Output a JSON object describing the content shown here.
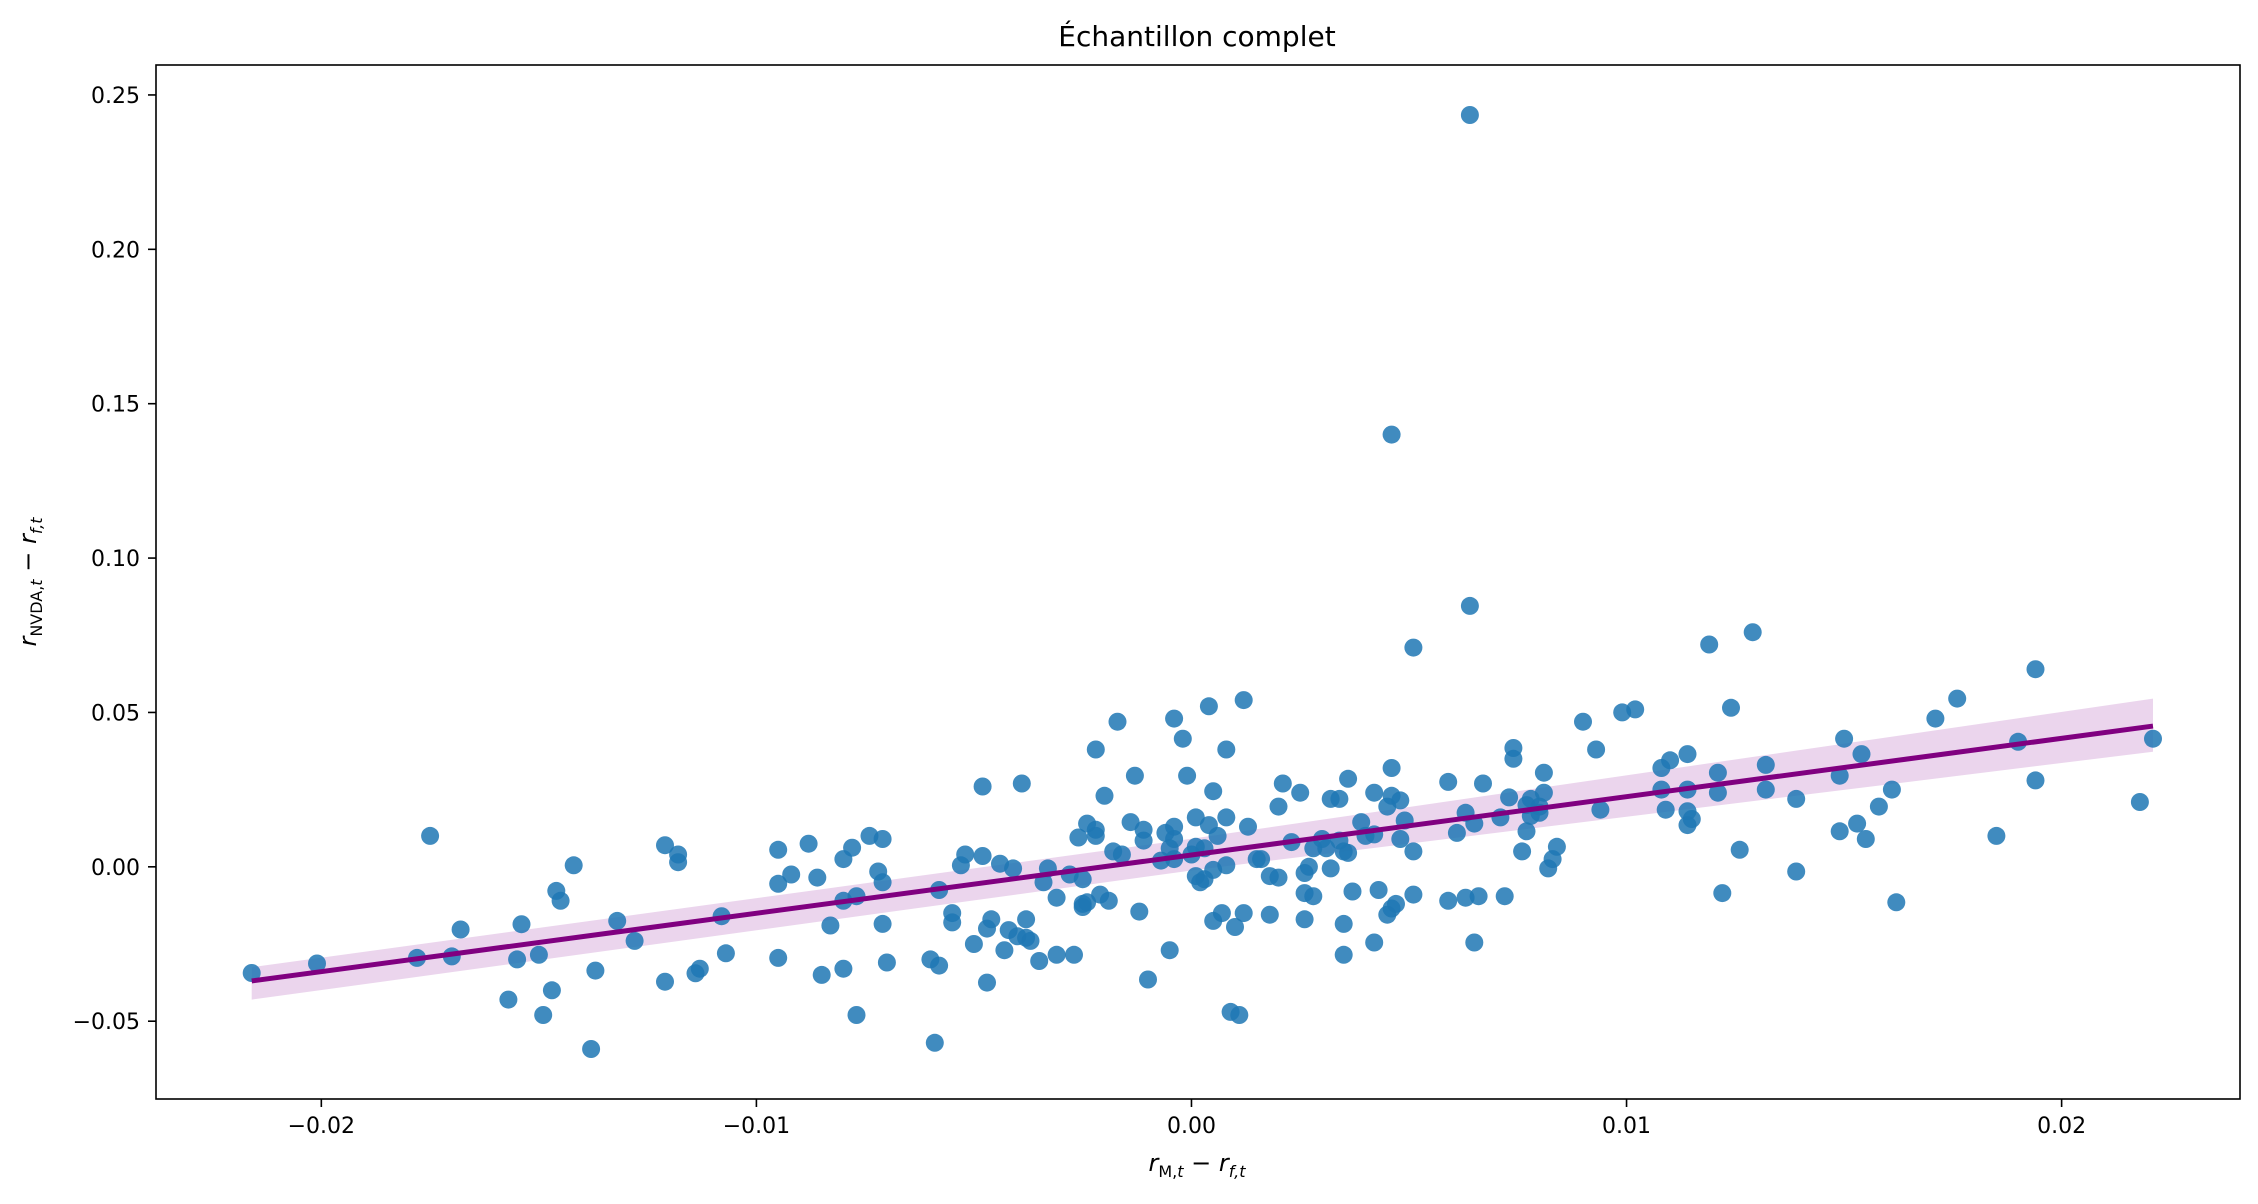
{
  "chart_data": {
    "type": "scatter",
    "title": "Échantillon complet",
    "xlabel": {
      "var": "r",
      "sub1": "M,",
      "sub1b": "t",
      "minus": " − ",
      "var2": "r",
      "sub2": "f,t"
    },
    "ylabel": {
      "var": "r",
      "sub1": "NVDA,",
      "sub1b": "t",
      "minus": " − ",
      "var2": "r",
      "sub2": "f,t"
    },
    "xlim": [
      -0.0238,
      0.0241
    ],
    "ylim": [
      -0.0752,
      0.2597
    ],
    "xticks": [
      -0.02,
      -0.01,
      0.0,
      0.01,
      0.02
    ],
    "xtick_labels": [
      "−0.02",
      "−0.01",
      "0.00",
      "0.01",
      "0.02"
    ],
    "yticks": [
      -0.05,
      0.0,
      0.05,
      0.1,
      0.15,
      0.2,
      0.25
    ],
    "ytick_labels": [
      "−0.05",
      "0.00",
      "0.05",
      "0.10",
      "0.15",
      "0.20",
      "0.25"
    ],
    "grid": false,
    "colors": {
      "points": "#1f77b4",
      "regression_line": "#800080",
      "confidence_band": "#dbb3df"
    },
    "regression": {
      "x_start": -0.0216,
      "x_end": 0.0221,
      "intercept": 0.00384,
      "slope": 1.889
    },
    "confidence_band": {
      "start": [
        -0.043,
        -0.0325
      ],
      "mid": [
        -0.0012,
        0.0091
      ],
      "end": [
        0.0373,
        0.0545
      ]
    },
    "points": [
      [
        -0.0216,
        -0.0344
      ],
      [
        -0.0201,
        -0.0313
      ],
      [
        -0.0175,
        0.01
      ],
      [
        -0.0178,
        -0.0295
      ],
      [
        -0.017,
        -0.029
      ],
      [
        -0.0168,
        -0.0203
      ],
      [
        -0.0157,
        -0.043
      ],
      [
        -0.0155,
        -0.03
      ],
      [
        -0.0154,
        -0.0186
      ],
      [
        -0.015,
        -0.0285
      ],
      [
        -0.0149,
        -0.048
      ],
      [
        -0.0147,
        -0.04
      ],
      [
        -0.0146,
        -0.0078
      ],
      [
        -0.0145,
        -0.011
      ],
      [
        -0.0142,
        0.0005
      ],
      [
        -0.0138,
        -0.059
      ],
      [
        -0.0137,
        -0.0336
      ],
      [
        -0.0132,
        -0.0175
      ],
      [
        -0.0128,
        -0.024
      ],
      [
        -0.0121,
        0.007
      ],
      [
        -0.0121,
        -0.0372
      ],
      [
        -0.0118,
        0.004
      ],
      [
        -0.0118,
        0.0015
      ],
      [
        -0.0114,
        -0.0345
      ],
      [
        -0.0113,
        -0.033
      ],
      [
        -0.0108,
        -0.016
      ],
      [
        -0.0107,
        -0.028
      ],
      [
        -0.0095,
        0.0055
      ],
      [
        -0.0095,
        -0.0055
      ],
      [
        -0.0095,
        -0.0295
      ],
      [
        -0.0092,
        -0.0025
      ],
      [
        -0.0088,
        0.0075
      ],
      [
        -0.0086,
        -0.0035
      ],
      [
        -0.0085,
        -0.035
      ],
      [
        -0.0083,
        -0.019
      ],
      [
        -0.008,
        0.0025
      ],
      [
        -0.008,
        -0.033
      ],
      [
        -0.008,
        -0.011
      ],
      [
        -0.0078,
        0.0062
      ],
      [
        -0.0077,
        -0.0095
      ],
      [
        -0.0077,
        -0.048
      ],
      [
        -0.0074,
        0.01
      ],
      [
        -0.0072,
        -0.0015
      ],
      [
        -0.0071,
        0.009
      ],
      [
        -0.0071,
        -0.005
      ],
      [
        -0.0071,
        -0.0185
      ],
      [
        -0.007,
        -0.031
      ],
      [
        -0.006,
        -0.03
      ],
      [
        -0.0058,
        -0.032
      ],
      [
        -0.0059,
        -0.057
      ],
      [
        -0.0058,
        -0.0075
      ],
      [
        -0.0055,
        -0.015
      ],
      [
        -0.0055,
        -0.018
      ],
      [
        -0.0053,
        0.0005
      ],
      [
        -0.0052,
        0.004
      ],
      [
        -0.005,
        -0.025
      ],
      [
        -0.0048,
        0.026
      ],
      [
        -0.0048,
        0.0035
      ],
      [
        -0.0047,
        -0.0375
      ],
      [
        -0.0047,
        -0.02
      ],
      [
        -0.0046,
        -0.017
      ],
      [
        -0.0044,
        0.001
      ],
      [
        -0.0043,
        -0.027
      ],
      [
        -0.0042,
        -0.0205
      ],
      [
        -0.0041,
        -0.0005
      ],
      [
        -0.004,
        -0.0225
      ],
      [
        -0.0039,
        0.027
      ],
      [
        -0.0038,
        -0.023
      ],
      [
        -0.0038,
        -0.017
      ],
      [
        -0.0037,
        -0.024
      ],
      [
        -0.0035,
        -0.0305
      ],
      [
        -0.0034,
        -0.005
      ],
      [
        -0.0033,
        -0.0005
      ],
      [
        -0.0031,
        -0.0285
      ],
      [
        -0.0031,
        -0.01
      ],
      [
        -0.0028,
        -0.0025
      ],
      [
        -0.0027,
        -0.0285
      ],
      [
        -0.0026,
        0.0095
      ],
      [
        -0.0025,
        -0.004
      ],
      [
        -0.0025,
        -0.012
      ],
      [
        -0.0025,
        -0.013
      ],
      [
        -0.0024,
        0.014
      ],
      [
        -0.0024,
        -0.0115
      ],
      [
        -0.0022,
        0.038
      ],
      [
        -0.0022,
        0.012
      ],
      [
        -0.0022,
        0.01
      ],
      [
        -0.0021,
        -0.009
      ],
      [
        -0.002,
        0.023
      ],
      [
        -0.0019,
        -0.011
      ],
      [
        -0.0018,
        0.005
      ],
      [
        -0.0017,
        0.047
      ],
      [
        -0.0016,
        0.004
      ],
      [
        -0.0014,
        0.0145
      ],
      [
        -0.0013,
        0.0295
      ],
      [
        -0.0012,
        -0.0145
      ],
      [
        -0.0011,
        0.012
      ],
      [
        -0.0011,
        0.0085
      ],
      [
        -0.001,
        -0.0365
      ],
      [
        -0.0007,
        0.002
      ],
      [
        -0.0006,
        0.011
      ],
      [
        -0.0005,
        -0.027
      ],
      [
        -0.0005,
        0.006
      ],
      [
        -0.0004,
        0.048
      ],
      [
        -0.0004,
        0.013
      ],
      [
        -0.0004,
        0.009
      ],
      [
        -0.0004,
        0.0025
      ],
      [
        -0.0002,
        0.0415
      ],
      [
        -0.0001,
        0.0295
      ],
      [
        0.0,
        0.004
      ],
      [
        0.0001,
        -0.003
      ],
      [
        0.0001,
        0.0065
      ],
      [
        0.0001,
        0.016
      ],
      [
        0.0002,
        -0.005
      ],
      [
        0.0003,
        -0.004
      ],
      [
        0.0003,
        0.006
      ],
      [
        0.0004,
        0.0135
      ],
      [
        0.0004,
        0.052
      ],
      [
        0.0005,
        0.0245
      ],
      [
        0.0005,
        -0.0175
      ],
      [
        0.0005,
        -0.001
      ],
      [
        0.0006,
        0.01
      ],
      [
        0.0007,
        -0.015
      ],
      [
        0.0008,
        0.038
      ],
      [
        0.0008,
        0.016
      ],
      [
        0.0008,
        0.0005
      ],
      [
        0.0009,
        -0.047
      ],
      [
        0.001,
        -0.0195
      ],
      [
        0.0011,
        -0.048
      ],
      [
        0.0012,
        0.054
      ],
      [
        0.0012,
        -0.015
      ],
      [
        0.0013,
        0.013
      ],
      [
        0.0015,
        0.0025
      ],
      [
        0.0016,
        0.0025
      ],
      [
        0.0018,
        -0.003
      ],
      [
        0.0018,
        -0.0155
      ],
      [
        0.002,
        0.0195
      ],
      [
        0.002,
        -0.0035
      ],
      [
        0.0021,
        0.027
      ],
      [
        0.0023,
        0.008
      ],
      [
        0.0025,
        0.024
      ],
      [
        0.0026,
        -0.002
      ],
      [
        0.0026,
        -0.0085
      ],
      [
        0.0026,
        -0.017
      ],
      [
        0.0027,
        0.0
      ],
      [
        0.0028,
        -0.0095
      ],
      [
        0.0028,
        0.006
      ],
      [
        0.003,
        0.009
      ],
      [
        0.0031,
        0.006
      ],
      [
        0.0032,
        0.022
      ],
      [
        0.0032,
        -0.0005
      ],
      [
        0.0034,
        0.0085
      ],
      [
        0.0034,
        0.022
      ],
      [
        0.0035,
        0.005
      ],
      [
        0.0035,
        -0.0185
      ],
      [
        0.0035,
        -0.0285
      ],
      [
        0.0036,
        0.0285
      ],
      [
        0.0036,
        0.0045
      ],
      [
        0.0037,
        -0.008
      ],
      [
        0.0039,
        0.0145
      ],
      [
        0.004,
        0.01
      ],
      [
        0.0042,
        -0.0245
      ],
      [
        0.0042,
        0.024
      ],
      [
        0.0042,
        0.0105
      ],
      [
        0.0043,
        -0.0075
      ],
      [
        0.0045,
        0.0195
      ],
      [
        0.0045,
        -0.0155
      ],
      [
        0.0046,
        0.14
      ],
      [
        0.0046,
        0.023
      ],
      [
        0.0046,
        0.032
      ],
      [
        0.0046,
        -0.0135
      ],
      [
        0.0047,
        -0.012
      ],
      [
        0.0048,
        0.009
      ],
      [
        0.0048,
        0.0215
      ],
      [
        0.0049,
        0.015
      ],
      [
        0.0051,
        0.071
      ],
      [
        0.0051,
        0.005
      ],
      [
        0.0051,
        -0.009
      ],
      [
        0.0059,
        0.0275
      ],
      [
        0.0059,
        -0.011
      ],
      [
        0.0061,
        0.011
      ],
      [
        0.0063,
        -0.01
      ],
      [
        0.0063,
        0.0175
      ],
      [
        0.0064,
        0.2435
      ],
      [
        0.0064,
        0.0845
      ],
      [
        0.0065,
        -0.0245
      ],
      [
        0.0065,
        0.014
      ],
      [
        0.0066,
        -0.0095
      ],
      [
        0.0067,
        0.027
      ],
      [
        0.0071,
        0.016
      ],
      [
        0.0072,
        -0.0095
      ],
      [
        0.0073,
        0.0225
      ],
      [
        0.0074,
        0.0385
      ],
      [
        0.0074,
        0.035
      ],
      [
        0.0076,
        0.005
      ],
      [
        0.0077,
        0.0115
      ],
      [
        0.0077,
        0.02
      ],
      [
        0.0078,
        0.0165
      ],
      [
        0.0078,
        0.022
      ],
      [
        0.008,
        0.0195
      ],
      [
        0.008,
        0.0175
      ],
      [
        0.0081,
        0.024
      ],
      [
        0.0081,
        0.0305
      ],
      [
        0.0082,
        -0.0005
      ],
      [
        0.0083,
        0.0025
      ],
      [
        0.0084,
        0.0065
      ],
      [
        0.009,
        0.047
      ],
      [
        0.0093,
        0.038
      ],
      [
        0.0094,
        0.0185
      ],
      [
        0.0099,
        0.05
      ],
      [
        0.0102,
        0.051
      ],
      [
        0.0108,
        0.032
      ],
      [
        0.0108,
        0.025
      ],
      [
        0.0109,
        0.0185
      ],
      [
        0.011,
        0.0345
      ],
      [
        0.0114,
        0.0365
      ],
      [
        0.0114,
        0.025
      ],
      [
        0.0114,
        0.018
      ],
      [
        0.0114,
        0.0135
      ],
      [
        0.0115,
        0.0155
      ],
      [
        0.0119,
        0.072
      ],
      [
        0.0121,
        0.0305
      ],
      [
        0.0121,
        0.024
      ],
      [
        0.0122,
        -0.0085
      ],
      [
        0.0124,
        0.0515
      ],
      [
        0.0126,
        0.0055
      ],
      [
        0.0129,
        0.076
      ],
      [
        0.0132,
        0.033
      ],
      [
        0.0132,
        0.025
      ],
      [
        0.0139,
        0.022
      ],
      [
        0.0139,
        -0.0015
      ],
      [
        0.0149,
        0.0295
      ],
      [
        0.0149,
        0.0115
      ],
      [
        0.015,
        0.0415
      ],
      [
        0.0153,
        0.014
      ],
      [
        0.0154,
        0.0365
      ],
      [
        0.0155,
        0.009
      ],
      [
        0.0158,
        0.0195
      ],
      [
        0.0161,
        0.025
      ],
      [
        0.0162,
        -0.0115
      ],
      [
        0.0171,
        0.048
      ],
      [
        0.0176,
        0.0545
      ],
      [
        0.0185,
        0.01
      ],
      [
        0.019,
        0.0405
      ],
      [
        0.0194,
        0.064
      ],
      [
        0.0194,
        0.028
      ],
      [
        0.0218,
        0.021
      ],
      [
        0.0221,
        0.0415
      ]
    ]
  }
}
